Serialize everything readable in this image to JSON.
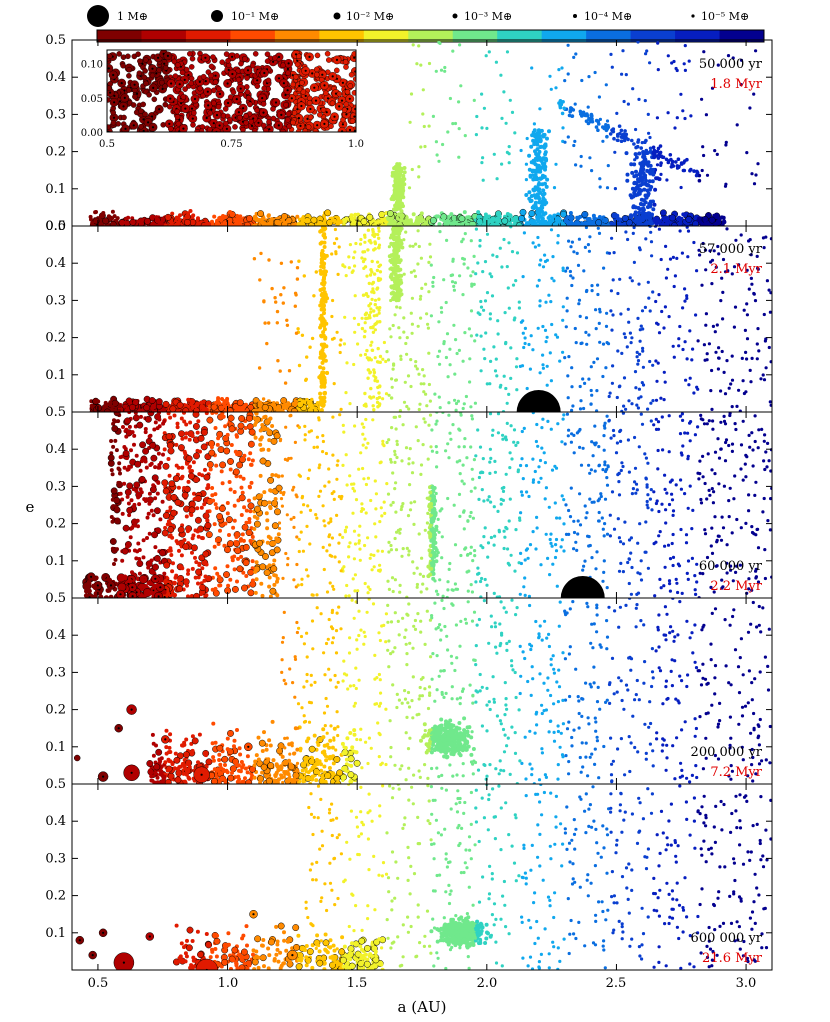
{
  "chart_data": {
    "type": "scatter",
    "xlabel": "a (AU)",
    "ylabel": "e",
    "xlim": [
      0.4,
      3.1
    ],
    "ylim": [
      0,
      0.5
    ],
    "x_ticks": [
      "0.5",
      "1.0",
      "1.5",
      "2.0",
      "2.5",
      "3.0"
    ],
    "y_ticks": [
      "0.0",
      "0.1",
      "0.2",
      "0.3",
      "0.4",
      "0.5"
    ],
    "colorbar": {
      "colors": [
        "#7f0000",
        "#b00000",
        "#e01a00",
        "#ff4a00",
        "#ff8a00",
        "#ffc400",
        "#f2f22a",
        "#b4f05a",
        "#70e88c",
        "#2fd2c2",
        "#10a8ee",
        "#0a6ee0",
        "#0a3fd0",
        "#061ec0",
        "#03008f"
      ]
    },
    "mass_legend": [
      {
        "label": "1 M⊕",
        "mass": 1
      },
      {
        "label": "10⁻¹ M⊕",
        "mass": 0.1
      },
      {
        "label": "10⁻² M⊕",
        "mass": 0.01
      },
      {
        "label": "10⁻³ M⊕",
        "mass": 0.001
      },
      {
        "label": "10⁻⁴ M⊕",
        "mass": 0.0001
      },
      {
        "label": "10⁻⁵ M⊕",
        "mass": 1e-05
      }
    ],
    "panels": [
      {
        "time": "50 000 yr",
        "time_scaled": "1.8 Myr",
        "jupiter_a": null
      },
      {
        "time": "57 000 yr",
        "time_scaled": "2.1 Myr",
        "jupiter_a": 2.2
      },
      {
        "time": "60 000 yr",
        "time_scaled": "2.2 Myr",
        "jupiter_a": 2.37
      },
      {
        "time": "200 000 yr",
        "time_scaled": "7.2 Myr",
        "jupiter_a": null
      },
      {
        "time": "600 000 yr",
        "time_scaled": "21.6 Myr",
        "jupiter_a": null
      }
    ],
    "inset": {
      "xlim": [
        0.5,
        1.0
      ],
      "ylim": [
        0,
        0.12
      ],
      "x_ticks": [
        "0.5",
        "0.75",
        "1.0"
      ],
      "y_ticks": [
        "0.00",
        "0.05",
        "0.10"
      ]
    }
  }
}
